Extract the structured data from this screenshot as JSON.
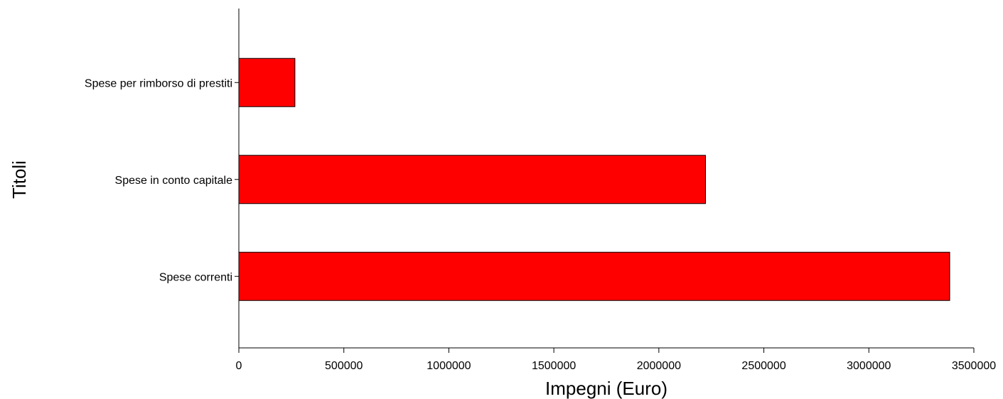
{
  "chart_data": {
    "type": "bar",
    "orientation": "horizontal",
    "categories": [
      "Spese per rimborso di prestiti",
      "Spese in conto capitale",
      "Spese correnti"
    ],
    "values": [
      267000,
      2222000,
      3385000
    ],
    "bar_color": "#ff0000",
    "xlabel": "Impegni (Euro)",
    "ylabel": "Titoli",
    "xlim": [
      0,
      3500000
    ],
    "xticks": [
      0,
      500000,
      1000000,
      1500000,
      2000000,
      2500000,
      3000000,
      3500000
    ],
    "xtick_labels": [
      "0",
      "500000",
      "1000000",
      "1500000",
      "2000000",
      "2500000",
      "3000000",
      "3500000"
    ],
    "grid": false,
    "legend": "none"
  }
}
